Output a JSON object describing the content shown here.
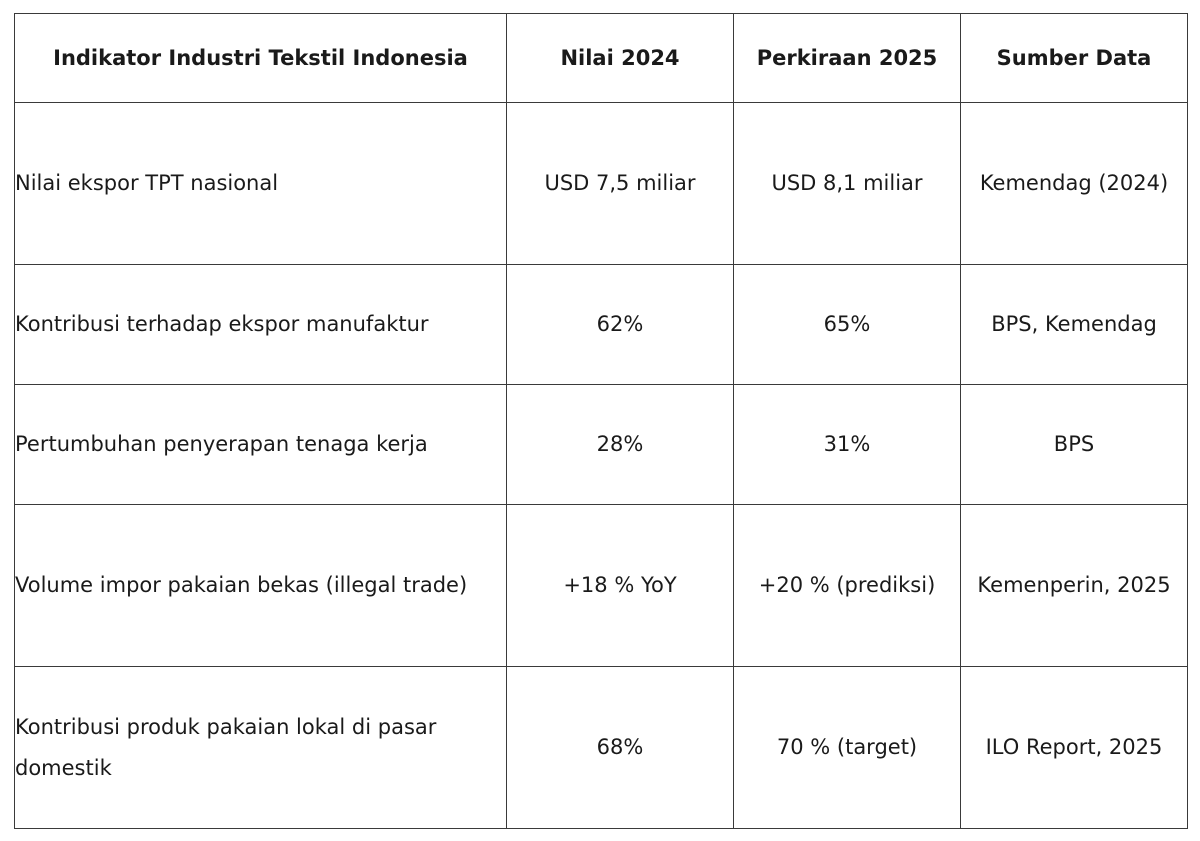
{
  "table": {
    "headers": [
      "Indikator Industri Tekstil Indonesia",
      "Nilai 2024",
      "Perkiraan 2025",
      "Sumber Data"
    ],
    "rows": [
      {
        "indicator": "Nilai ekspor TPT nasional",
        "value_2024": "USD 7,5 miliar",
        "forecast_2025": "USD 8,1 miliar",
        "source": "Kemendag (2024)"
      },
      {
        "indicator": "Kontribusi terhadap ekspor manufaktur",
        "value_2024": "62%",
        "forecast_2025": "65%",
        "source": "BPS, Kemendag"
      },
      {
        "indicator": "Pertumbuhan penyerapan tenaga kerja",
        "value_2024": "28%",
        "forecast_2025": "31%",
        "source": "BPS"
      },
      {
        "indicator": "Volume impor pakaian bekas (illegal trade)",
        "value_2024": "+18 % YoY",
        "forecast_2025": "+20 % (prediksi)",
        "source": "Kemenperin, 2025"
      },
      {
        "indicator": "Kontribusi produk pakaian lokal di pasar domestik",
        "value_2024": "68%",
        "forecast_2025": "70 % (target)",
        "source": "ILO Report, 2025"
      }
    ]
  },
  "colors": {
    "border": "#3a3a3a",
    "text": "#1a1a1a",
    "background": "#ffffff"
  }
}
